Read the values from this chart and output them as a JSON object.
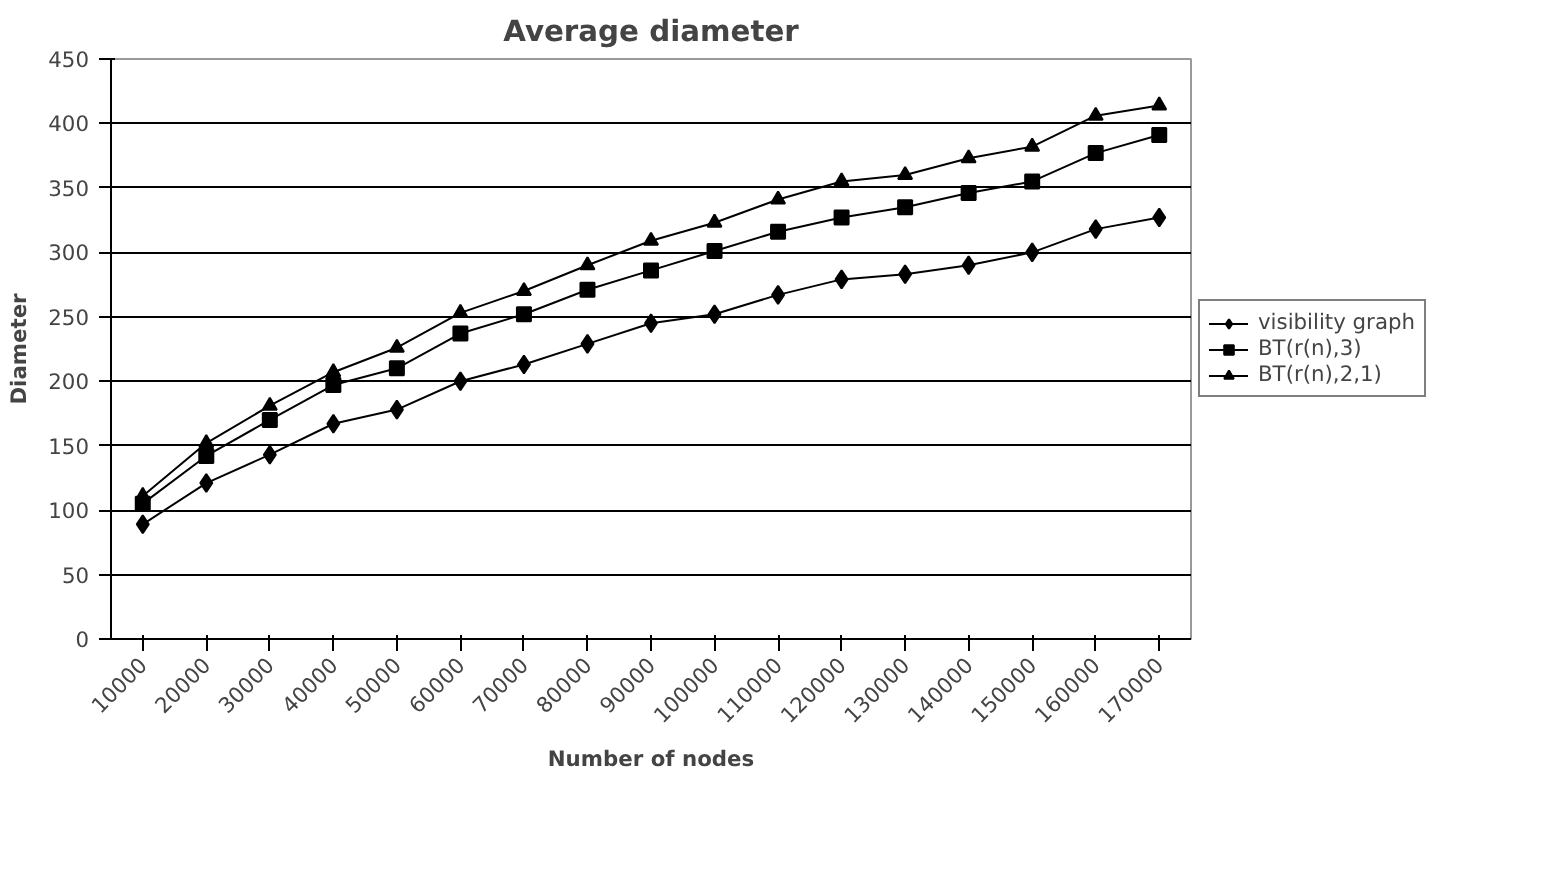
{
  "chart_data": {
    "type": "line",
    "title": "Average diameter",
    "xlabel": "Number of nodes",
    "ylabel": "Diameter",
    "categories": [
      "10000",
      "20000",
      "30000",
      "40000",
      "50000",
      "60000",
      "70000",
      "80000",
      "90000",
      "100000",
      "110000",
      "120000",
      "130000",
      "140000",
      "150000",
      "160000",
      "170000"
    ],
    "series": [
      {
        "name": "visibility graph",
        "color": "#000000",
        "marker": "diamond",
        "values": [
          89,
          121,
          143,
          167,
          178,
          200,
          213,
          229,
          245,
          252,
          267,
          279,
          283,
          290,
          300,
          318,
          327
        ]
      },
      {
        "name": "BT(r(n),3)",
        "color": "#000000",
        "marker": "square",
        "values": [
          105,
          142,
          170,
          197,
          210,
          237,
          252,
          271,
          286,
          301,
          316,
          327,
          335,
          346,
          355,
          377,
          391
        ]
      },
      {
        "name": "BT(r(n),2,1)",
        "color": "#000000",
        "marker": "triangle",
        "values": [
          111,
          152,
          181,
          207,
          226,
          253,
          270,
          290,
          309,
          323,
          341,
          355,
          360,
          373,
          382,
          406,
          414
        ]
      }
    ],
    "ylim": [
      0,
      450
    ],
    "yticks": [
      0,
      50,
      100,
      150,
      200,
      250,
      300,
      350,
      400,
      450
    ],
    "grid": "y",
    "legend": "right",
    "line_style": "solid"
  }
}
